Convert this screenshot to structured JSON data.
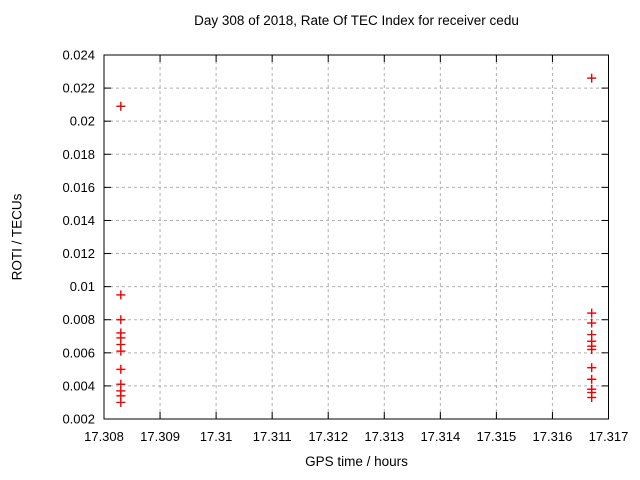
{
  "page": {
    "background": "#ffffff",
    "text_color": "#000000"
  },
  "chart_data": {
    "type": "scatter",
    "title": "Day 308 of 2018, Rate Of TEC Index for receiver cedu",
    "xlabel": "GPS time / hours",
    "ylabel": "ROTI / TECUs",
    "xlim": [
      17.308,
      17.317
    ],
    "ylim": [
      0.002,
      0.024
    ],
    "grid": true,
    "grid_color": "#b0b0b0",
    "frame_color": "#000000",
    "marker": {
      "shape": "plus",
      "color": "#ee0000",
      "size": 9
    },
    "xticks": [
      {
        "v": 17.308,
        "label": "17.308"
      },
      {
        "v": 17.309,
        "label": "17.309"
      },
      {
        "v": 17.31,
        "label": "17.31"
      },
      {
        "v": 17.311,
        "label": "17.311"
      },
      {
        "v": 17.312,
        "label": "17.312"
      },
      {
        "v": 17.313,
        "label": "17.313"
      },
      {
        "v": 17.314,
        "label": "17.314"
      },
      {
        "v": 17.315,
        "label": "17.315"
      },
      {
        "v": 17.316,
        "label": "17.316"
      },
      {
        "v": 17.317,
        "label": "17.317"
      }
    ],
    "yticks": [
      {
        "v": 0.002,
        "label": "0.002"
      },
      {
        "v": 0.004,
        "label": "0.004"
      },
      {
        "v": 0.006,
        "label": "0.006"
      },
      {
        "v": 0.008,
        "label": "0.008"
      },
      {
        "v": 0.01,
        "label": "0.01"
      },
      {
        "v": 0.012,
        "label": "0.012"
      },
      {
        "v": 0.014,
        "label": "0.014"
      },
      {
        "v": 0.016,
        "label": "0.016"
      },
      {
        "v": 0.018,
        "label": "0.018"
      },
      {
        "v": 0.02,
        "label": "0.02"
      },
      {
        "v": 0.022,
        "label": "0.022"
      },
      {
        "v": 0.024,
        "label": "0.024"
      }
    ],
    "series": [
      {
        "name": "ROTI",
        "color": "#ee0000",
        "points": [
          [
            17.3083,
            0.0209
          ],
          [
            17.3083,
            0.0095
          ],
          [
            17.3083,
            0.008
          ],
          [
            17.3083,
            0.0072
          ],
          [
            17.3083,
            0.0069
          ],
          [
            17.3083,
            0.0065
          ],
          [
            17.3083,
            0.0061
          ],
          [
            17.3083,
            0.005
          ],
          [
            17.3083,
            0.0041
          ],
          [
            17.3083,
            0.0037
          ],
          [
            17.3083,
            0.0034
          ],
          [
            17.3083,
            0.003
          ],
          [
            17.3167,
            0.0226
          ],
          [
            17.3167,
            0.0084
          ],
          [
            17.3167,
            0.0078
          ],
          [
            17.3167,
            0.0071
          ],
          [
            17.3167,
            0.0067
          ],
          [
            17.3167,
            0.0064
          ],
          [
            17.3167,
            0.0062
          ],
          [
            17.3167,
            0.0051
          ],
          [
            17.3167,
            0.0044
          ],
          [
            17.3167,
            0.0038
          ],
          [
            17.3167,
            0.0036
          ],
          [
            17.3167,
            0.0033
          ]
        ]
      }
    ]
  }
}
